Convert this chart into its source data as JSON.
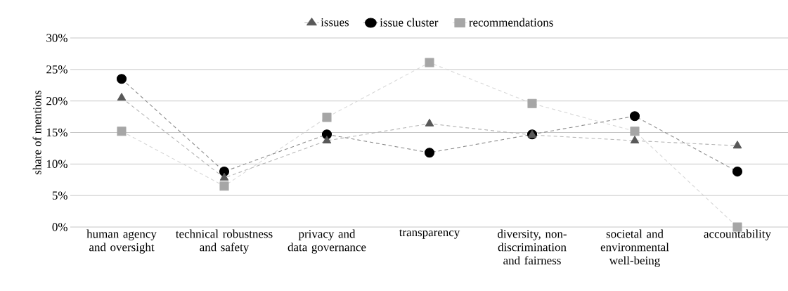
{
  "chart_data": {
    "type": "line",
    "ylabel": "share of mentions",
    "categories": [
      "human agency and oversight",
      "technical robustness and safety",
      "privacy and data governance",
      "transparency",
      "diversity, non-discrimination and fairness",
      "societal and environmental well-being",
      "accountability"
    ],
    "series": [
      {
        "name": "issues",
        "color": "#595959",
        "marker": "triangle",
        "values": [
          20.5,
          7.8,
          13.7,
          16.4,
          14.6,
          13.7,
          12.9
        ]
      },
      {
        "name": "issue cluster",
        "color": "#000000",
        "marker": "circle",
        "values": [
          23.5,
          8.8,
          14.7,
          11.8,
          14.7,
          17.6,
          8.8
        ]
      },
      {
        "name": "recommendations",
        "color": "#a6a6a6",
        "marker": "square",
        "values": [
          15.2,
          6.5,
          17.4,
          26.1,
          19.6,
          15.2,
          0
        ]
      }
    ],
    "ylim": [
      0,
      30
    ],
    "yticks": [
      {
        "value": 0,
        "label": "0%"
      },
      {
        "value": 5,
        "label": "5%"
      },
      {
        "value": 10,
        "label": "10%"
      },
      {
        "value": 15,
        "label": "15%"
      },
      {
        "value": 20,
        "label": "20%"
      },
      {
        "value": 25,
        "label": "25%"
      },
      {
        "value": 30,
        "label": "30%"
      }
    ],
    "grid": "y",
    "legend": "top",
    "line_style": "dashed"
  }
}
